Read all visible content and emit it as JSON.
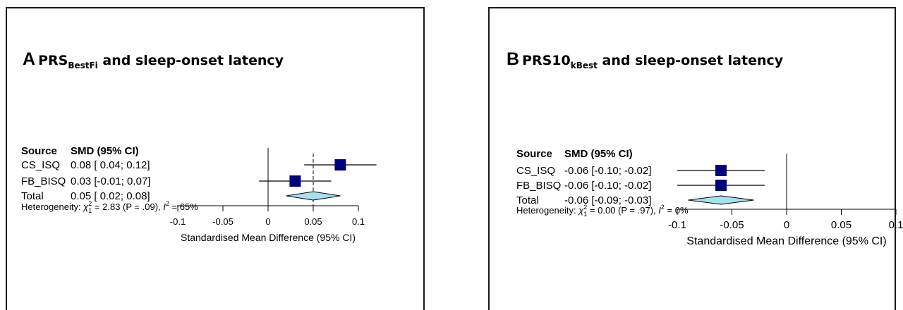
{
  "chart_data": [
    {
      "type": "forest",
      "panel_letter": "A",
      "title_main": "PRS",
      "title_sub": "BestFi",
      "title_rest": "and sleep-onset latency",
      "header_source": "Source",
      "header_smd": "SMD (95% CI)",
      "rows": [
        {
          "source": "CS_ISQ",
          "ci_text": "0.08 [ 0.04; 0.12]",
          "est": 0.08,
          "lo": 0.04,
          "hi": 0.12,
          "kind": "study"
        },
        {
          "source": "FB_BISQ",
          "ci_text": "0.03 [-0.01; 0.07]",
          "est": 0.03,
          "lo": -0.01,
          "hi": 0.07,
          "kind": "study"
        },
        {
          "source": "Total",
          "ci_text": "0.05 [ 0.02; 0.08]",
          "est": 0.05,
          "lo": 0.02,
          "hi": 0.08,
          "kind": "total"
        }
      ],
      "heterogeneity": {
        "label": "Heterogeneity:",
        "chi_value": "= 2.83",
        "p_text": "(P = .09),",
        "i2_text": "= 65%"
      },
      "xticks": [
        -0.1,
        -0.05,
        0,
        0.05,
        0.1
      ],
      "xtick_labels": [
        "-0.1",
        "-0.05",
        "0",
        "0.05",
        "0.1"
      ],
      "xlabel": "Standardised Mean Difference (95% CI)",
      "xlim": [
        -0.1,
        0.1
      ],
      "colors": {
        "square": "#00007f",
        "diamond": "#a6e1ef"
      }
    },
    {
      "type": "forest",
      "panel_letter": "B",
      "title_main": "PRS10",
      "title_sub": "kBest",
      "title_rest": "and sleep-onset latency",
      "header_source": "Source",
      "header_smd": "SMD (95% CI)",
      "rows": [
        {
          "source": "CS_ISQ",
          "ci_text": "-0.06 [-0.10; -0.02]",
          "est": -0.06,
          "lo": -0.1,
          "hi": -0.02,
          "kind": "study"
        },
        {
          "source": "FB_BISQ",
          "ci_text": "-0.06 [-0.10; -0.02]",
          "est": -0.06,
          "lo": -0.1,
          "hi": -0.02,
          "kind": "study"
        },
        {
          "source": "Total",
          "ci_text": "-0.06 [-0.09; -0.03]",
          "est": -0.06,
          "lo": -0.09,
          "hi": -0.03,
          "kind": "total"
        }
      ],
      "heterogeneity": {
        "label": "Heterogeneity:",
        "chi_value": "= 0.00",
        "p_text": "(P = .97),",
        "i2_text": "= 0%"
      },
      "xticks": [
        -0.1,
        -0.05,
        0,
        0.05,
        0.1
      ],
      "xtick_labels": [
        "-0.1",
        "-0.05",
        "0",
        "0.05",
        "0.1"
      ],
      "xlabel": "Standardised Mean Difference (95% CI)",
      "xlim": [
        -0.1,
        0.1
      ],
      "colors": {
        "square": "#00007f",
        "diamond": "#a6e1ef"
      }
    }
  ]
}
